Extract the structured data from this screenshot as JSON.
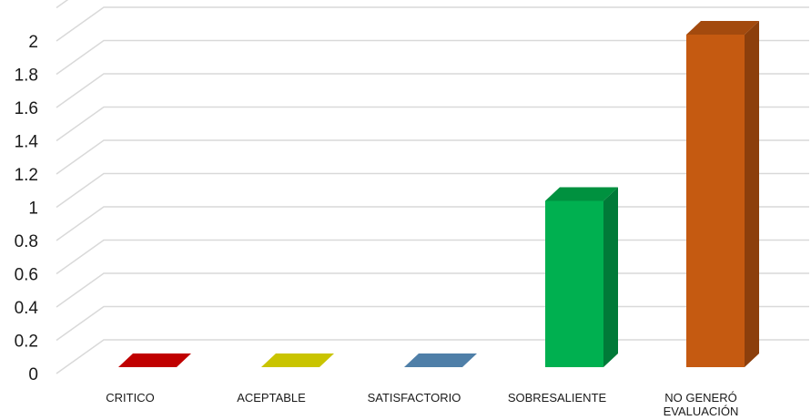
{
  "chart_data": {
    "type": "bar",
    "title": "",
    "xlabel": "",
    "ylabel": "",
    "ylim": [
      0,
      2.2
    ],
    "yticks": [
      "0",
      "0.2",
      "0.4",
      "0.6",
      "0.8",
      "1",
      "1.2",
      "1.4",
      "1.6",
      "1.8",
      "2"
    ],
    "grid": true,
    "legend": "none",
    "categories": [
      [
        "CRITICO"
      ],
      [
        "ACEPTABLE"
      ],
      [
        "SATISFACTORIO"
      ],
      [
        "SOBRESALIENTE"
      ],
      [
        "NO GENERÓ",
        "EVALUACIÓN"
      ]
    ],
    "values": [
      0,
      0,
      0,
      1,
      2
    ],
    "colors": [
      "#c00000",
      "#c9c400",
      "#4f7fa8",
      "#00b050",
      "#c55a11"
    ],
    "side_colors": [
      "#8a0000",
      "#9a9500",
      "#365d80",
      "#007a38",
      "#8c3f0c"
    ],
    "top_colors": [
      "#c00000",
      "#c9c400",
      "#4f7fa8",
      "#00913f",
      "#a34a0e"
    ]
  }
}
